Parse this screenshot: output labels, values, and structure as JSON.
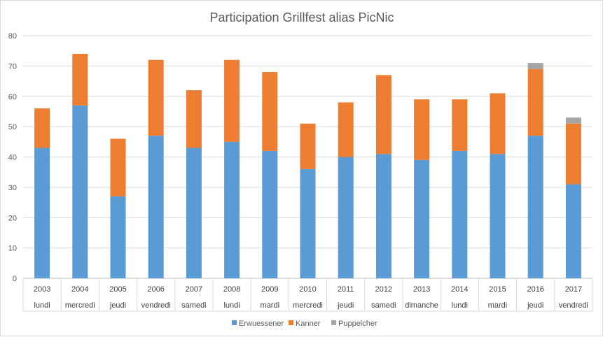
{
  "chart_data": {
    "type": "bar",
    "stacked": true,
    "title": "Participation Grillfest alias PicNic",
    "xlabel": "",
    "ylabel": "",
    "ylim": [
      0,
      80
    ],
    "yticks": [
      0,
      10,
      20,
      30,
      40,
      50,
      60,
      70,
      80
    ],
    "grid": true,
    "legend": "bottom",
    "categories": [
      "2003",
      "2004",
      "2005",
      "2006",
      "2007",
      "2008",
      "2009",
      "2010",
      "2011",
      "2012",
      "2013",
      "2014",
      "2015",
      "2016",
      "2017"
    ],
    "days": [
      "lundi",
      "mercredi",
      "jeudi",
      "vendredi",
      "samedi",
      "lundi",
      "mardi",
      "mercredi",
      "jeudi",
      "samedi",
      "dimanche",
      "lundi",
      "mardi",
      "jeudi",
      "vendredi"
    ],
    "series": [
      {
        "name": "Erwuessener",
        "color": "#5b9bd5",
        "values": [
          43,
          57,
          27,
          47,
          43,
          45,
          42,
          36,
          40,
          41,
          39,
          42,
          41,
          47,
          31
        ]
      },
      {
        "name": "Kanner",
        "color": "#ed7d31",
        "values": [
          13,
          17,
          19,
          25,
          19,
          27,
          26,
          15,
          18,
          26,
          20,
          17,
          20,
          22,
          20
        ]
      },
      {
        "name": "Puppelcher",
        "color": "#a5a5a5",
        "values": [
          0,
          0,
          0,
          0,
          0,
          0,
          0,
          0,
          0,
          0,
          0,
          0,
          0,
          2,
          2
        ]
      }
    ]
  }
}
